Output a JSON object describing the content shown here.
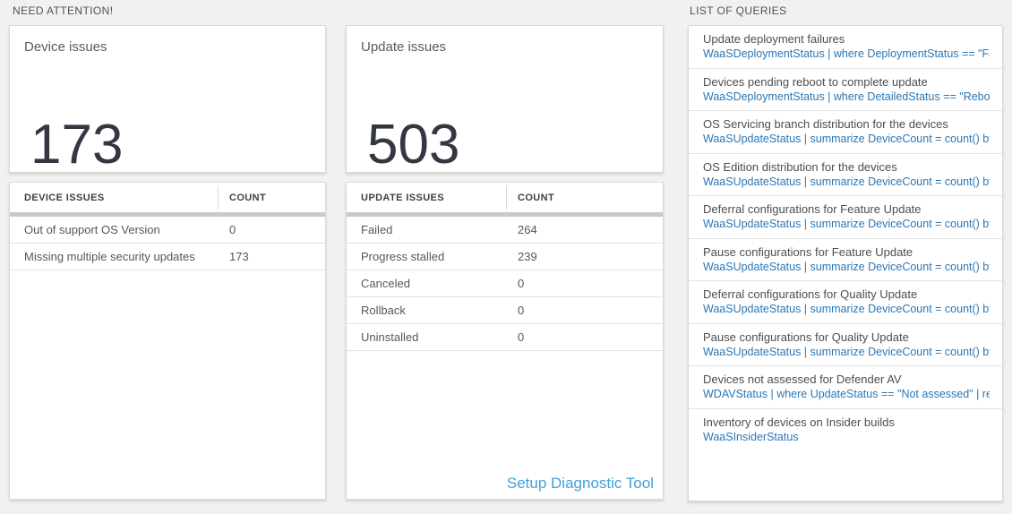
{
  "labels": {
    "need_attention": "NEED ATTENTION!",
    "list_of_queries": "LIST OF QUERIES"
  },
  "device_card": {
    "title": "Device issues",
    "value": "173"
  },
  "device_table": {
    "col1": "DEVICE ISSUES",
    "col2": "COUNT",
    "rows": [
      {
        "name": "Out of support OS Version",
        "count": "0"
      },
      {
        "name": "Missing multiple security updates",
        "count": "173"
      }
    ]
  },
  "update_card": {
    "title": "Update issues",
    "value": "503"
  },
  "update_table": {
    "col1": "UPDATE ISSUES",
    "col2": "COUNT",
    "rows": [
      {
        "name": "Failed",
        "count": "264"
      },
      {
        "name": "Progress stalled",
        "count": "239"
      },
      {
        "name": "Canceled",
        "count": "0"
      },
      {
        "name": "Rollback",
        "count": "0"
      },
      {
        "name": "Uninstalled",
        "count": "0"
      }
    ],
    "link_label": "Setup Diagnostic Tool"
  },
  "queries": {
    "items": [
      {
        "title": "Update deployment failures",
        "query": "WaaSDeploymentStatus | where DeploymentStatus == \"Failed\" |..."
      },
      {
        "title": "Devices pending reboot to complete update",
        "query": "WaaSDeploymentStatus | where DetailedStatus == \"Reboot pend..."
      },
      {
        "title": "OS Servicing branch distribution for the devices",
        "query": "WaaSUpdateStatus | summarize DeviceCount = count() by OSSer..."
      },
      {
        "title": "OS Edition distribution for the devices",
        "query": "WaaSUpdateStatus | summarize DeviceCount = count() by OSEdit..."
      },
      {
        "title": "Deferral configurations for Feature Update",
        "query": "WaaSUpdateStatus | summarize DeviceCount = count() by Featur..."
      },
      {
        "title": "Pause configurations for Feature Update",
        "query": "WaaSUpdateStatus | summarize DeviceCount = count() by Featur..."
      },
      {
        "title": "Deferral configurations for Quality Update",
        "query": "WaaSUpdateStatus | summarize DeviceCount = count() by Qualit..."
      },
      {
        "title": "Pause configurations for Quality Update",
        "query": "WaaSUpdateStatus | summarize DeviceCount = count() by Qualit..."
      },
      {
        "title": "Devices not assessed for Defender AV",
        "query": "WDAVStatus | where UpdateStatus == \"Not assessed\" | render ta..."
      },
      {
        "title": "Inventory of devices on Insider builds",
        "query": "WaaSInsiderStatus"
      }
    ]
  },
  "colors": {
    "page_bg": "#f1f1f1",
    "query_link_blue": "#2b77b5",
    "diag_link_blue": "#41a0da",
    "big_number_color": "#323741"
  }
}
